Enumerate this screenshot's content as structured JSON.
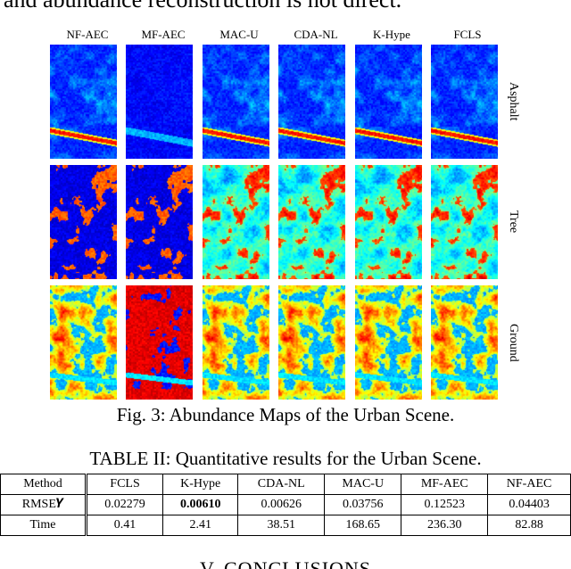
{
  "top_text": "and abundance reconstruction is not direct.",
  "figure": {
    "columns": [
      "NF-AEC",
      "MF-AEC",
      "MAC-U",
      "CDA-NL",
      "K-Hype",
      "FCLS"
    ],
    "rows": [
      "Asphalt",
      "Tree",
      "Ground"
    ],
    "colormap": "jet",
    "caption": "Fig. 3: Abundance Maps of the Urban Scene."
  },
  "table": {
    "title": "TABLE II: Quantitative results for the Urban Scene.",
    "header": [
      "Method",
      "FCLS",
      "K-Hype",
      "CDA-NL",
      "MAC-U",
      "MF-AEC",
      "NF-AEC"
    ],
    "rows": [
      {
        "label": "RMSE𝒀",
        "values": [
          "0.02279",
          "0.00610",
          "0.00626",
          "0.03756",
          "0.12523",
          "0.04403"
        ],
        "bold_index": 1
      },
      {
        "label": "Time",
        "values": [
          "0.41",
          "2.41",
          "38.51",
          "168.65",
          "236.30",
          "82.88"
        ],
        "bold_index": -1
      }
    ]
  },
  "section_heading": "V. CONCLUSIONS"
}
